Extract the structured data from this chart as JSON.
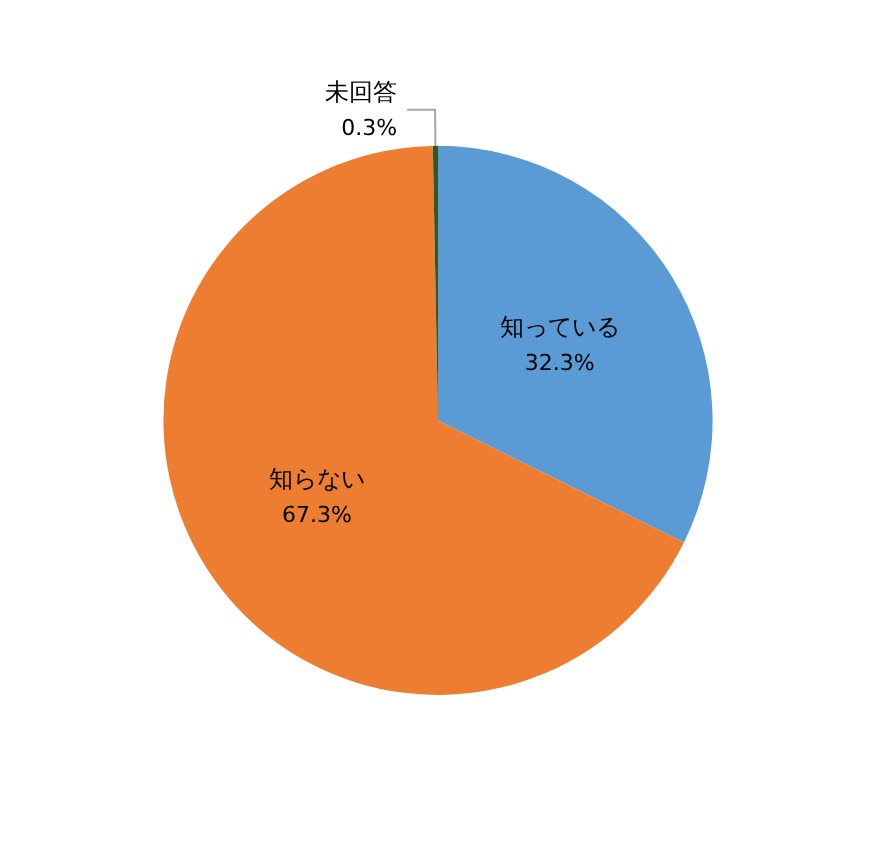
{
  "chart_data": {
    "type": "pie",
    "categories": [
      "知っている",
      "知らない",
      "未回答"
    ],
    "values": [
      32.3,
      67.3,
      0.3
    ],
    "colors": [
      "#5b9bd5",
      "#ed7d31",
      "#375623"
    ],
    "value_labels": [
      "32.3%",
      "67.3%",
      "0.3%"
    ],
    "legend": false
  }
}
